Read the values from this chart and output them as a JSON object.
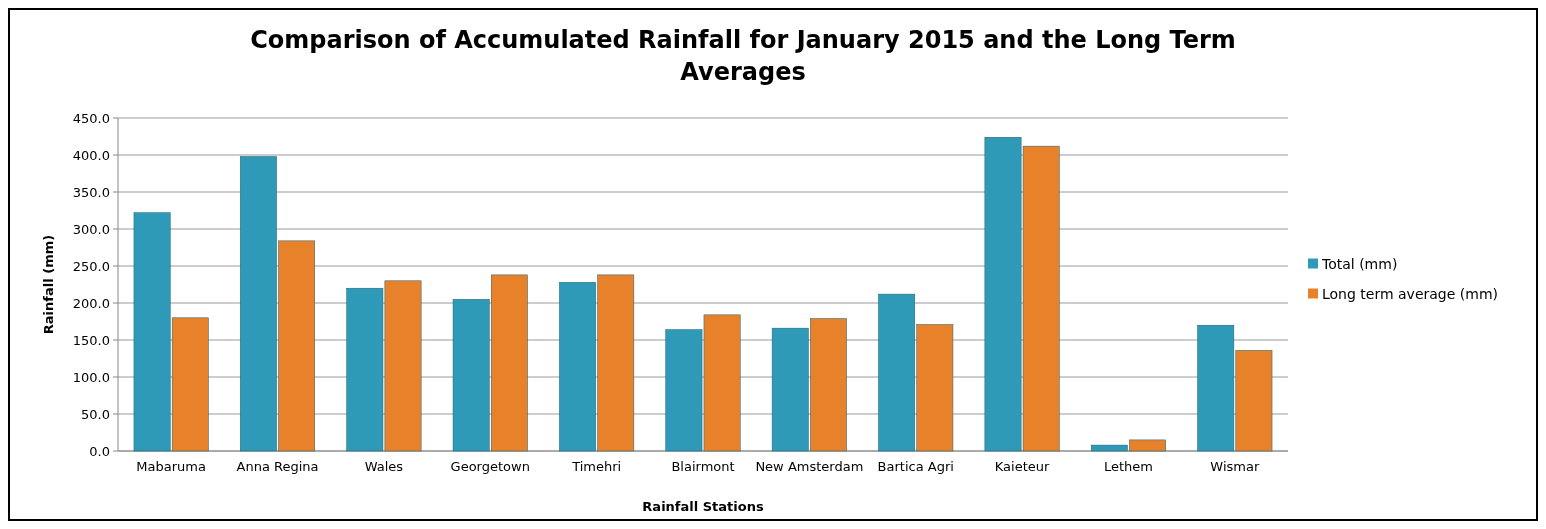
{
  "chart_data": {
    "type": "bar",
    "title": "Comparison of Accumulated Rainfall for January 2015 and the Long Term Averages",
    "xlabel": "Rainfall  Stations",
    "ylabel": "Rainfall (mm)",
    "categories": [
      "Mabaruma",
      "Anna Regina",
      "Wales",
      "Georgetown",
      "Timehri",
      "Blairmont",
      "New Amsterdam",
      "Bartica Agri",
      "Kaieteur",
      "Lethem",
      "Wismar"
    ],
    "series": [
      {
        "name": "Total (mm)",
        "color": "#2e9ab8",
        "values": [
          322,
          398,
          220,
          205,
          228,
          164,
          166,
          212,
          424,
          8,
          170
        ]
      },
      {
        "name": "Long term average (mm)",
        "color": "#e8822a",
        "values": [
          180,
          284,
          230,
          238,
          238,
          184,
          179,
          171,
          412,
          15,
          136
        ]
      }
    ],
    "ylim": [
      0,
      450
    ],
    "yticks": [
      {
        "value": 0,
        "label": "0.0"
      },
      {
        "value": 50,
        "label": "50.0"
      },
      {
        "value": 100,
        "label": "100.0"
      },
      {
        "value": 150,
        "label": "150.0"
      },
      {
        "value": 200,
        "label": "200.0"
      },
      {
        "value": 250,
        "label": "250.0"
      },
      {
        "value": 300,
        "label": "300.0"
      },
      {
        "value": 350,
        "label": "350.0"
      },
      {
        "value": 400,
        "label": "400.0"
      },
      {
        "value": 450,
        "label": "450.0"
      }
    ],
    "grid": "y",
    "legend": "right"
  }
}
